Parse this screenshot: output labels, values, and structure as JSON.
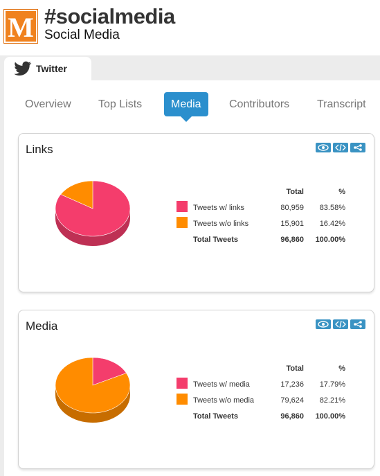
{
  "header": {
    "logo_letter": "M",
    "title": "#socialmedia",
    "subtitle": "Social Media"
  },
  "tabs": [
    {
      "label": "Twitter",
      "icon": "twitter-bird-icon",
      "active": true
    }
  ],
  "subnav": {
    "items": [
      "Overview",
      "Top Lists",
      "Media",
      "Contributors",
      "Transcript"
    ],
    "active": "Media"
  },
  "colors": {
    "accent": "#2b8fcd",
    "logo": "#f0821e",
    "pink": "#f43d6c",
    "orange": "#ff8c00"
  },
  "panels": [
    {
      "title": "Links",
      "tools": [
        "eye-icon",
        "code-icon",
        "share-icon"
      ],
      "table": {
        "headers": {
          "total": "Total",
          "pct": "%"
        },
        "rows": [
          {
            "label": "Tweets w/ links",
            "total": "80,959",
            "pct": "83.58%",
            "color": "#f43d6c"
          },
          {
            "label": "Tweets w/o links",
            "total": "15,901",
            "pct": "16.42%",
            "color": "#ff8c00"
          }
        ],
        "footer": {
          "label": "Total Tweets",
          "total": "96,860",
          "pct": "100.00%"
        }
      },
      "chart_data": {
        "type": "pie",
        "categories": [
          "Tweets w/ links",
          "Tweets w/o links"
        ],
        "values": [
          83.58,
          16.42
        ],
        "colors": [
          "#f43d6c",
          "#ff8c00"
        ]
      }
    },
    {
      "title": "Media",
      "tools": [
        "eye-icon",
        "code-icon",
        "share-icon"
      ],
      "table": {
        "headers": {
          "total": "Total",
          "pct": "%"
        },
        "rows": [
          {
            "label": "Tweets w/ media",
            "total": "17,236",
            "pct": "17.79%",
            "color": "#f43d6c"
          },
          {
            "label": "Tweets w/o media",
            "total": "79,624",
            "pct": "82.21%",
            "color": "#ff8c00"
          }
        ],
        "footer": {
          "label": "Total Tweets",
          "total": "96,860",
          "pct": "100.00%"
        }
      },
      "chart_data": {
        "type": "pie",
        "categories": [
          "Tweets w/ media",
          "Tweets w/o media"
        ],
        "values": [
          17.79,
          82.21
        ],
        "colors": [
          "#f43d6c",
          "#ff8c00"
        ]
      }
    }
  ]
}
